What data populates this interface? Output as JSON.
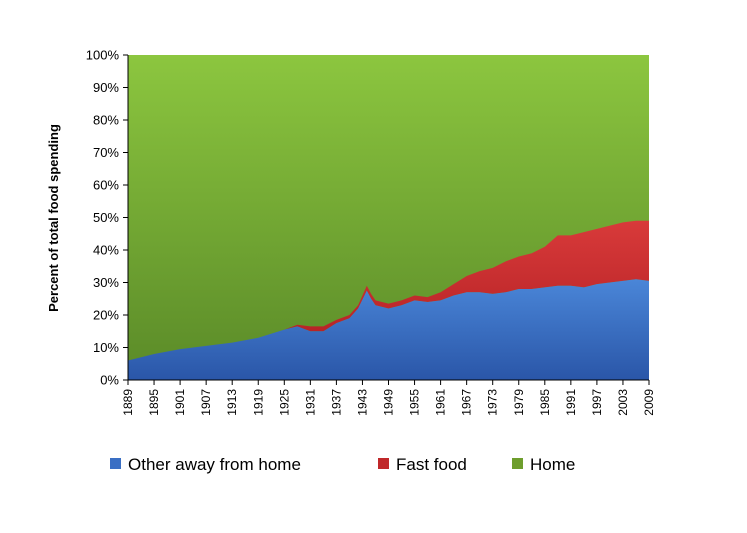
{
  "chart_data": {
    "type": "area",
    "stacked": true,
    "title": "",
    "xlabel": "",
    "ylabel": "Percent of total food spending",
    "xlim": [
      1889,
      2009
    ],
    "ylim": [
      0,
      100
    ],
    "x_ticks": [
      "1889",
      "1895",
      "1901",
      "1907",
      "1913",
      "1919",
      "1925",
      "1931",
      "1937",
      "1943",
      "1949",
      "1955",
      "1961",
      "1967",
      "1973",
      "1979",
      "1985",
      "1991",
      "1997",
      "2003",
      "2009"
    ],
    "y_ticks": [
      "0%",
      "10%",
      "20%",
      "30%",
      "40%",
      "50%",
      "60%",
      "70%",
      "80%",
      "90%",
      "100%"
    ],
    "legend_position": "bottom",
    "series": [
      {
        "name": "Other away from home",
        "color": "#3a6fc4",
        "points": [
          [
            1889,
            6
          ],
          [
            1895,
            8
          ],
          [
            1901,
            9.5
          ],
          [
            1907,
            10.5
          ],
          [
            1913,
            11.5
          ],
          [
            1919,
            13
          ],
          [
            1925,
            15.5
          ],
          [
            1928,
            16.5
          ],
          [
            1931,
            15
          ],
          [
            1934,
            15
          ],
          [
            1937,
            17.5
          ],
          [
            1940,
            19
          ],
          [
            1942,
            22
          ],
          [
            1944,
            27.5
          ],
          [
            1945,
            25
          ],
          [
            1946,
            23
          ],
          [
            1949,
            22
          ],
          [
            1952,
            23
          ],
          [
            1955,
            24.5
          ],
          [
            1958,
            24
          ],
          [
            1961,
            24.5
          ],
          [
            1964,
            26
          ],
          [
            1967,
            27
          ],
          [
            1970,
            27
          ],
          [
            1973,
            26.5
          ],
          [
            1976,
            27
          ],
          [
            1979,
            28
          ],
          [
            1982,
            28
          ],
          [
            1985,
            28.5
          ],
          [
            1988,
            29
          ],
          [
            1991,
            29
          ],
          [
            1994,
            28.5
          ],
          [
            1997,
            29.5
          ],
          [
            2000,
            30
          ],
          [
            2003,
            30.5
          ],
          [
            2006,
            31
          ],
          [
            2009,
            30.5
          ]
        ]
      },
      {
        "name": "Fast food",
        "color": "#c0282a",
        "points": [
          [
            1889,
            0
          ],
          [
            1925,
            0
          ],
          [
            1928,
            0.5
          ],
          [
            1931,
            1.5
          ],
          [
            1934,
            1.5
          ],
          [
            1937,
            1
          ],
          [
            1940,
            1
          ],
          [
            1942,
            1
          ],
          [
            1944,
            1.5
          ],
          [
            1945,
            1.5
          ],
          [
            1946,
            1.5
          ],
          [
            1949,
            1.5
          ],
          [
            1952,
            1.5
          ],
          [
            1955,
            1.5
          ],
          [
            1958,
            1.5
          ],
          [
            1961,
            2.5
          ],
          [
            1964,
            3.5
          ],
          [
            1967,
            5
          ],
          [
            1970,
            6.5
          ],
          [
            1973,
            8
          ],
          [
            1976,
            9.5
          ],
          [
            1979,
            10
          ],
          [
            1982,
            11
          ],
          [
            1985,
            12.5
          ],
          [
            1988,
            15.5
          ],
          [
            1991,
            15.5
          ],
          [
            1994,
            17
          ],
          [
            1997,
            17
          ],
          [
            2000,
            17.5
          ],
          [
            2003,
            18
          ],
          [
            2006,
            18
          ],
          [
            2009,
            18.5
          ]
        ]
      },
      {
        "name": "Home",
        "color": "#6e9e2d",
        "fill": "remainder to 100%"
      }
    ]
  }
}
